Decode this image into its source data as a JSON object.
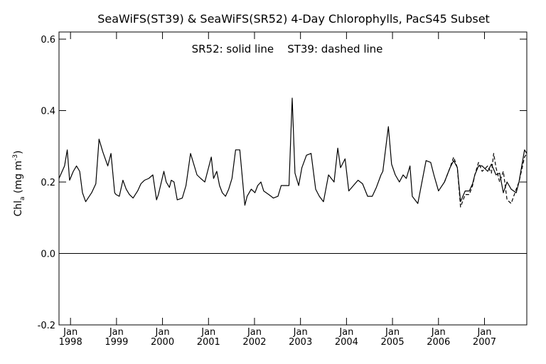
{
  "chart_data": {
    "type": "line",
    "title": "SeaWiFS(ST39) & SeaWiFS(SR52) 4-Day Chlorophylls, PacS45 Subset",
    "annotation": "SR52: solid line    ST39: dashed line",
    "ylabel": "Chl",
    "ylabel_sub": "a",
    "ylabel_unit_open": " (mg m",
    "ylabel_unit_sup": "-3",
    "ylabel_unit_close": ")",
    "xlim": [
      1997.75,
      2007.92
    ],
    "ylim": [
      -0.2,
      0.62
    ],
    "x_tick_month": "Jan",
    "x_ticks": [
      {
        "x": 1998,
        "label": "1998"
      },
      {
        "x": 1999,
        "label": "1999"
      },
      {
        "x": 2000,
        "label": "2000"
      },
      {
        "x": 2001,
        "label": "2001"
      },
      {
        "x": 2002,
        "label": "2002"
      },
      {
        "x": 2003,
        "label": "2003"
      },
      {
        "x": 2004,
        "label": "2004"
      },
      {
        "x": 2005,
        "label": "2005"
      },
      {
        "x": 2006,
        "label": "2006"
      },
      {
        "x": 2007,
        "label": "2007"
      }
    ],
    "y_ticks": [
      {
        "y": -0.2,
        "label": "-0.2"
      },
      {
        "y": 0.0,
        "label": "0.0"
      },
      {
        "y": 0.2,
        "label": "0.2"
      },
      {
        "y": 0.4,
        "label": "0.4"
      },
      {
        "y": 0.6,
        "label": "0.6"
      }
    ],
    "reference_line_y": 0.0,
    "colors": {
      "line": "#000000",
      "background": "#ffffff"
    },
    "series": [
      {
        "name": "SR52",
        "style": "solid",
        "x": [
          1997.75,
          1997.87,
          1997.93,
          1997.98,
          1998.06,
          1998.13,
          1998.2,
          1998.26,
          1998.33,
          1998.46,
          1998.55,
          1998.62,
          1998.7,
          1998.81,
          1998.88,
          1998.96,
          1998.99,
          1999.06,
          1999.14,
          1999.21,
          1999.28,
          1999.36,
          1999.46,
          1999.53,
          1999.61,
          1999.7,
          1999.79,
          1999.87,
          1999.91,
          2000.03,
          2000.08,
          2000.15,
          2000.19,
          2000.25,
          2000.32,
          2000.43,
          2000.51,
          2000.61,
          2000.75,
          2000.83,
          2000.92,
          2000.98,
          2001.06,
          2001.11,
          2001.18,
          2001.24,
          2001.3,
          2001.37,
          2001.44,
          2001.51,
          2001.59,
          2001.68,
          2001.79,
          2001.84,
          2001.93,
          2002.01,
          2002.07,
          2002.14,
          2002.2,
          2002.31,
          2002.41,
          2002.51,
          2002.58,
          2002.75,
          2002.82,
          2002.88,
          2002.96,
          2003.03,
          2003.13,
          2003.23,
          2003.33,
          2003.41,
          2003.5,
          2003.61,
          2003.73,
          2003.81,
          2003.87,
          2003.97,
          2004.05,
          2004.15,
          2004.25,
          2004.35,
          2004.46,
          2004.56,
          2004.65,
          2004.75,
          2004.79,
          2004.91,
          2004.98,
          2005.06,
          2005.15,
          2005.23,
          2005.3,
          2005.38,
          2005.43,
          2005.55,
          2005.64,
          2005.73,
          2005.83,
          2005.9,
          2006.0,
          2006.13,
          2006.25,
          2006.33,
          2006.41,
          2006.48,
          2006.58,
          2006.67,
          2006.74,
          2006.79,
          2006.87,
          2006.95,
          2007.07,
          2007.15,
          2007.25,
          2007.33,
          2007.41,
          2007.49,
          2007.58,
          2007.69,
          2007.75,
          2007.87,
          2007.92
        ],
        "y": [
          0.21,
          0.245,
          0.29,
          0.205,
          0.23,
          0.245,
          0.23,
          0.17,
          0.145,
          0.17,
          0.195,
          0.32,
          0.285,
          0.245,
          0.28,
          0.17,
          0.165,
          0.16,
          0.205,
          0.18,
          0.165,
          0.155,
          0.175,
          0.195,
          0.205,
          0.21,
          0.22,
          0.15,
          0.165,
          0.23,
          0.2,
          0.185,
          0.205,
          0.2,
          0.15,
          0.155,
          0.19,
          0.28,
          0.22,
          0.21,
          0.2,
          0.23,
          0.27,
          0.21,
          0.23,
          0.19,
          0.17,
          0.16,
          0.18,
          0.21,
          0.29,
          0.29,
          0.135,
          0.16,
          0.18,
          0.17,
          0.19,
          0.2,
          0.175,
          0.165,
          0.155,
          0.16,
          0.19,
          0.19,
          0.435,
          0.225,
          0.19,
          0.24,
          0.275,
          0.28,
          0.18,
          0.16,
          0.145,
          0.22,
          0.2,
          0.295,
          0.24,
          0.265,
          0.175,
          0.19,
          0.205,
          0.195,
          0.16,
          0.16,
          0.185,
          0.22,
          0.23,
          0.355,
          0.25,
          0.22,
          0.2,
          0.22,
          0.21,
          0.245,
          0.16,
          0.14,
          0.2,
          0.26,
          0.255,
          0.22,
          0.175,
          0.2,
          0.24,
          0.26,
          0.24,
          0.145,
          0.175,
          0.175,
          0.195,
          0.22,
          0.245,
          0.245,
          0.23,
          0.25,
          0.22,
          0.225,
          0.17,
          0.2,
          0.18,
          0.17,
          0.2,
          0.29,
          0.28
        ]
      },
      {
        "name": "ST39",
        "style": "dashed",
        "x": [
          2006.13,
          2006.25,
          2006.33,
          2006.41,
          2006.48,
          2006.58,
          2006.67,
          2006.74,
          2006.79,
          2006.87,
          2006.95,
          2007.07,
          2007.15,
          2007.2,
          2007.25,
          2007.33,
          2007.41,
          2007.49,
          2007.58,
          2007.69,
          2007.75,
          2007.87,
          2007.92
        ],
        "y": [
          0.2,
          0.24,
          0.27,
          0.24,
          0.13,
          0.165,
          0.165,
          0.19,
          0.22,
          0.255,
          0.23,
          0.245,
          0.225,
          0.28,
          0.24,
          0.2,
          0.23,
          0.15,
          0.14,
          0.18,
          0.2,
          0.27,
          0.28
        ]
      }
    ]
  }
}
